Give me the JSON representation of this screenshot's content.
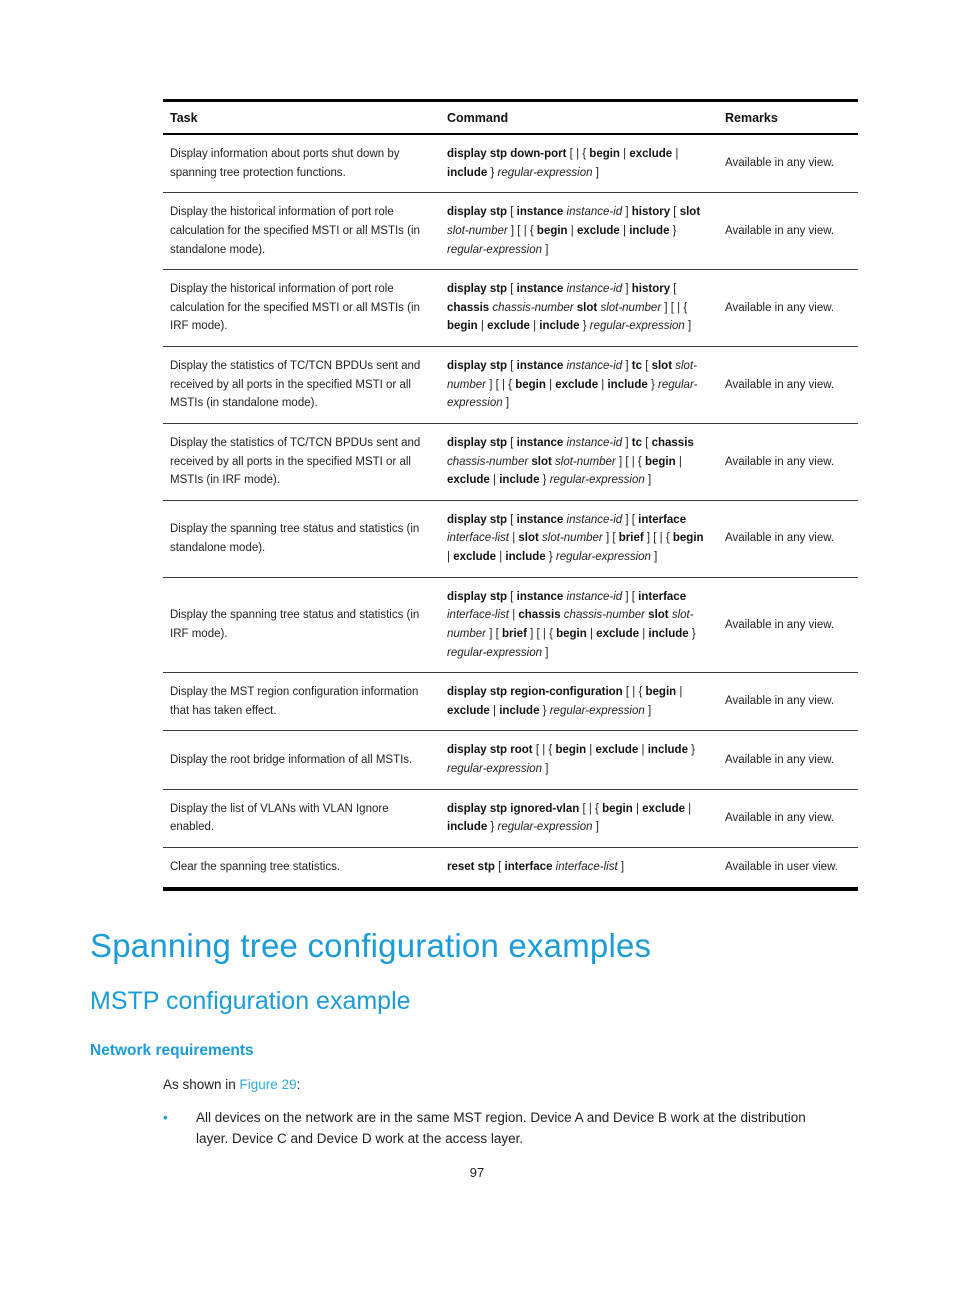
{
  "colors": {
    "heading_blue": "#1b9cd9",
    "link_blue": "#2fadde",
    "bullet_blue": "#1b9cd9"
  },
  "table": {
    "columns": [
      "Task",
      "Command",
      "Remarks"
    ],
    "rows": [
      {
        "task": "Display information about ports shut down by spanning tree protection functions.",
        "command": [
          [
            "b",
            "display stp down-port"
          ],
          [
            "n",
            " [ | { "
          ],
          [
            "b",
            "begin"
          ],
          [
            "n",
            " | "
          ],
          [
            "b",
            "exclude"
          ],
          [
            "n",
            " | "
          ],
          [
            "b",
            "include"
          ],
          [
            "n",
            " } "
          ],
          [
            "i",
            "regular-expression"
          ],
          [
            "n",
            " ]"
          ]
        ],
        "remarks": "Available in any view."
      },
      {
        "task": "Display the historical information of port role calculation for the specified MSTI or all MSTIs (in standalone mode).",
        "command": [
          [
            "b",
            "display stp"
          ],
          [
            "n",
            " [ "
          ],
          [
            "b",
            "instance"
          ],
          [
            "n",
            " "
          ],
          [
            "i",
            "instance-id"
          ],
          [
            "n",
            " ] "
          ],
          [
            "b",
            "history"
          ],
          [
            "n",
            " [ "
          ],
          [
            "b",
            "slot"
          ],
          [
            "n",
            " "
          ],
          [
            "i",
            "slot-number"
          ],
          [
            "n",
            " ] [ | { "
          ],
          [
            "b",
            "begin"
          ],
          [
            "n",
            " | "
          ],
          [
            "b",
            "exclude"
          ],
          [
            "n",
            " | "
          ],
          [
            "b",
            "include"
          ],
          [
            "n",
            " } "
          ],
          [
            "i",
            "regular-expression"
          ],
          [
            "n",
            " ]"
          ]
        ],
        "remarks": "Available in any view."
      },
      {
        "task": "Display the historical information of port role calculation for the specified MSTI or all MSTIs (in IRF mode).",
        "command": [
          [
            "b",
            "display stp"
          ],
          [
            "n",
            " [ "
          ],
          [
            "b",
            "instance"
          ],
          [
            "n",
            " "
          ],
          [
            "i",
            "instance-id"
          ],
          [
            "n",
            " ] "
          ],
          [
            "b",
            "history"
          ],
          [
            "n",
            " [ "
          ],
          [
            "b",
            "chassis"
          ],
          [
            "n",
            " "
          ],
          [
            "i",
            "chassis-number"
          ],
          [
            "n",
            " "
          ],
          [
            "b",
            "slot"
          ],
          [
            "n",
            " "
          ],
          [
            "i",
            "slot-number"
          ],
          [
            "n",
            " ] [ | { "
          ],
          [
            "b",
            "begin"
          ],
          [
            "n",
            " | "
          ],
          [
            "b",
            "exclude"
          ],
          [
            "n",
            " | "
          ],
          [
            "b",
            "include"
          ],
          [
            "n",
            " } "
          ],
          [
            "i",
            "regular-expression"
          ],
          [
            "n",
            " ]"
          ]
        ],
        "remarks": "Available in any view."
      },
      {
        "task": "Display the statistics of TC/TCN BPDUs sent and received by all ports in the specified MSTI or all MSTIs (in standalone mode).",
        "command": [
          [
            "b",
            "display stp"
          ],
          [
            "n",
            " [ "
          ],
          [
            "b",
            "instance"
          ],
          [
            "n",
            " "
          ],
          [
            "i",
            "instance-id"
          ],
          [
            "n",
            " ] "
          ],
          [
            "b",
            "tc"
          ],
          [
            "n",
            " [ "
          ],
          [
            "b",
            "slot"
          ],
          [
            "n",
            " "
          ],
          [
            "i",
            "slot-number"
          ],
          [
            "n",
            " ] [ | { "
          ],
          [
            "b",
            "begin"
          ],
          [
            "n",
            " | "
          ],
          [
            "b",
            "exclude"
          ],
          [
            "n",
            " | "
          ],
          [
            "b",
            "include"
          ],
          [
            "n",
            " } "
          ],
          [
            "i",
            "regular-expression"
          ],
          [
            "n",
            " ]"
          ]
        ],
        "remarks": "Available in any view."
      },
      {
        "task": "Display the statistics of TC/TCN BPDUs sent and received by all ports in the specified MSTI or all MSTIs (in IRF mode).",
        "command": [
          [
            "b",
            "display stp"
          ],
          [
            "n",
            " [ "
          ],
          [
            "b",
            "instance"
          ],
          [
            "n",
            " "
          ],
          [
            "i",
            "instance-id"
          ],
          [
            "n",
            " ] "
          ],
          [
            "b",
            "tc"
          ],
          [
            "n",
            " [ "
          ],
          [
            "b",
            "chassis"
          ],
          [
            "n",
            " "
          ],
          [
            "i",
            "chassis-number"
          ],
          [
            "n",
            " "
          ],
          [
            "b",
            "slot"
          ],
          [
            "n",
            " "
          ],
          [
            "i",
            "slot-number"
          ],
          [
            "n",
            " ] [ | { "
          ],
          [
            "b",
            "begin"
          ],
          [
            "n",
            " | "
          ],
          [
            "b",
            "exclude"
          ],
          [
            "n",
            " | "
          ],
          [
            "b",
            "include"
          ],
          [
            "n",
            " } "
          ],
          [
            "i",
            "regular-expression"
          ],
          [
            "n",
            " ]"
          ]
        ],
        "remarks": "Available in any view."
      },
      {
        "task": "Display the spanning tree status and statistics (in standalone mode).",
        "command": [
          [
            "b",
            "display stp"
          ],
          [
            "n",
            " [ "
          ],
          [
            "b",
            "instance"
          ],
          [
            "n",
            " "
          ],
          [
            "i",
            "instance-id"
          ],
          [
            "n",
            " ] [ "
          ],
          [
            "b",
            "interface"
          ],
          [
            "n",
            " "
          ],
          [
            "i",
            "interface-list"
          ],
          [
            "n",
            " | "
          ],
          [
            "b",
            "slot"
          ],
          [
            "n",
            " "
          ],
          [
            "i",
            "slot-number"
          ],
          [
            "n",
            " ] [ "
          ],
          [
            "b",
            "brief"
          ],
          [
            "n",
            " ] [ | { "
          ],
          [
            "b",
            "begin"
          ],
          [
            "n",
            " | "
          ],
          [
            "b",
            "exclude"
          ],
          [
            "n",
            " | "
          ],
          [
            "b",
            "include"
          ],
          [
            "n",
            " } "
          ],
          [
            "i",
            "regular-expression"
          ],
          [
            "n",
            " ]"
          ]
        ],
        "remarks": "Available in any view."
      },
      {
        "task": "Display the spanning tree status and statistics (in IRF mode).",
        "command": [
          [
            "b",
            "display stp"
          ],
          [
            "n",
            " [ "
          ],
          [
            "b",
            "instance"
          ],
          [
            "n",
            " "
          ],
          [
            "i",
            "instance-id"
          ],
          [
            "n",
            " ] [ "
          ],
          [
            "b",
            "interface"
          ],
          [
            "n",
            " "
          ],
          [
            "i",
            "interface-list"
          ],
          [
            "n",
            " | "
          ],
          [
            "b",
            "chassis"
          ],
          [
            "n",
            " "
          ],
          [
            "i",
            "chassis-number"
          ],
          [
            "n",
            " "
          ],
          [
            "b",
            "slot"
          ],
          [
            "n",
            " "
          ],
          [
            "i",
            "slot-number"
          ],
          [
            "n",
            " ] [ "
          ],
          [
            "b",
            "brief"
          ],
          [
            "n",
            " ] [ | { "
          ],
          [
            "b",
            "begin"
          ],
          [
            "n",
            " | "
          ],
          [
            "b",
            "exclude"
          ],
          [
            "n",
            " | "
          ],
          [
            "b",
            "include"
          ],
          [
            "n",
            " } "
          ],
          [
            "i",
            "regular-expression"
          ],
          [
            "n",
            " ]"
          ]
        ],
        "remarks": "Available in any view."
      },
      {
        "task": "Display the MST region configuration information that has taken effect.",
        "command": [
          [
            "b",
            "display stp region-configuration"
          ],
          [
            "n",
            " [ | { "
          ],
          [
            "b",
            "begin"
          ],
          [
            "n",
            " | "
          ],
          [
            "b",
            "exclude"
          ],
          [
            "n",
            " | "
          ],
          [
            "b",
            "include"
          ],
          [
            "n",
            " } "
          ],
          [
            "i",
            "regular-expression"
          ],
          [
            "n",
            " ]"
          ]
        ],
        "remarks": "Available in any view."
      },
      {
        "task": "Display the root bridge information of all MSTIs.",
        "command": [
          [
            "b",
            "display stp root"
          ],
          [
            "n",
            " [ | { "
          ],
          [
            "b",
            "begin"
          ],
          [
            "n",
            " | "
          ],
          [
            "b",
            "exclude"
          ],
          [
            "n",
            " | "
          ],
          [
            "b",
            "include"
          ],
          [
            "n",
            " } "
          ],
          [
            "i",
            "regular-expression"
          ],
          [
            "n",
            " ]"
          ]
        ],
        "remarks": "Available in any view."
      },
      {
        "task": "Display the list of VLANs with VLAN Ignore enabled.",
        "command": [
          [
            "b",
            "display stp ignored-vlan"
          ],
          [
            "n",
            " [ | { "
          ],
          [
            "b",
            "begin"
          ],
          [
            "n",
            " | "
          ],
          [
            "b",
            "exclude"
          ],
          [
            "n",
            " | "
          ],
          [
            "b",
            "include"
          ],
          [
            "n",
            " } "
          ],
          [
            "i",
            "regular-expression"
          ],
          [
            "n",
            " ]"
          ]
        ],
        "remarks": "Available in any view."
      },
      {
        "task": "Clear the spanning tree statistics.",
        "command": [
          [
            "b",
            "reset stp"
          ],
          [
            "n",
            " [ "
          ],
          [
            "b",
            "interface"
          ],
          [
            "n",
            " "
          ],
          [
            "i",
            "interface-list"
          ],
          [
            "n",
            " ]"
          ]
        ],
        "remarks": "Available in user view."
      }
    ]
  },
  "headings": {
    "h1": "Spanning tree configuration examples",
    "h2": "MSTP configuration example",
    "h3": "Network requirements"
  },
  "intro": {
    "prefix": "As shown in ",
    "link": "Figure 29",
    "suffix": ":"
  },
  "bullets": [
    "All devices on the network are in the same MST region. Device A and Device B work at the distribution layer. Device C and Device D work at the access layer."
  ],
  "bullet_glyph": "•",
  "page_number": "97"
}
